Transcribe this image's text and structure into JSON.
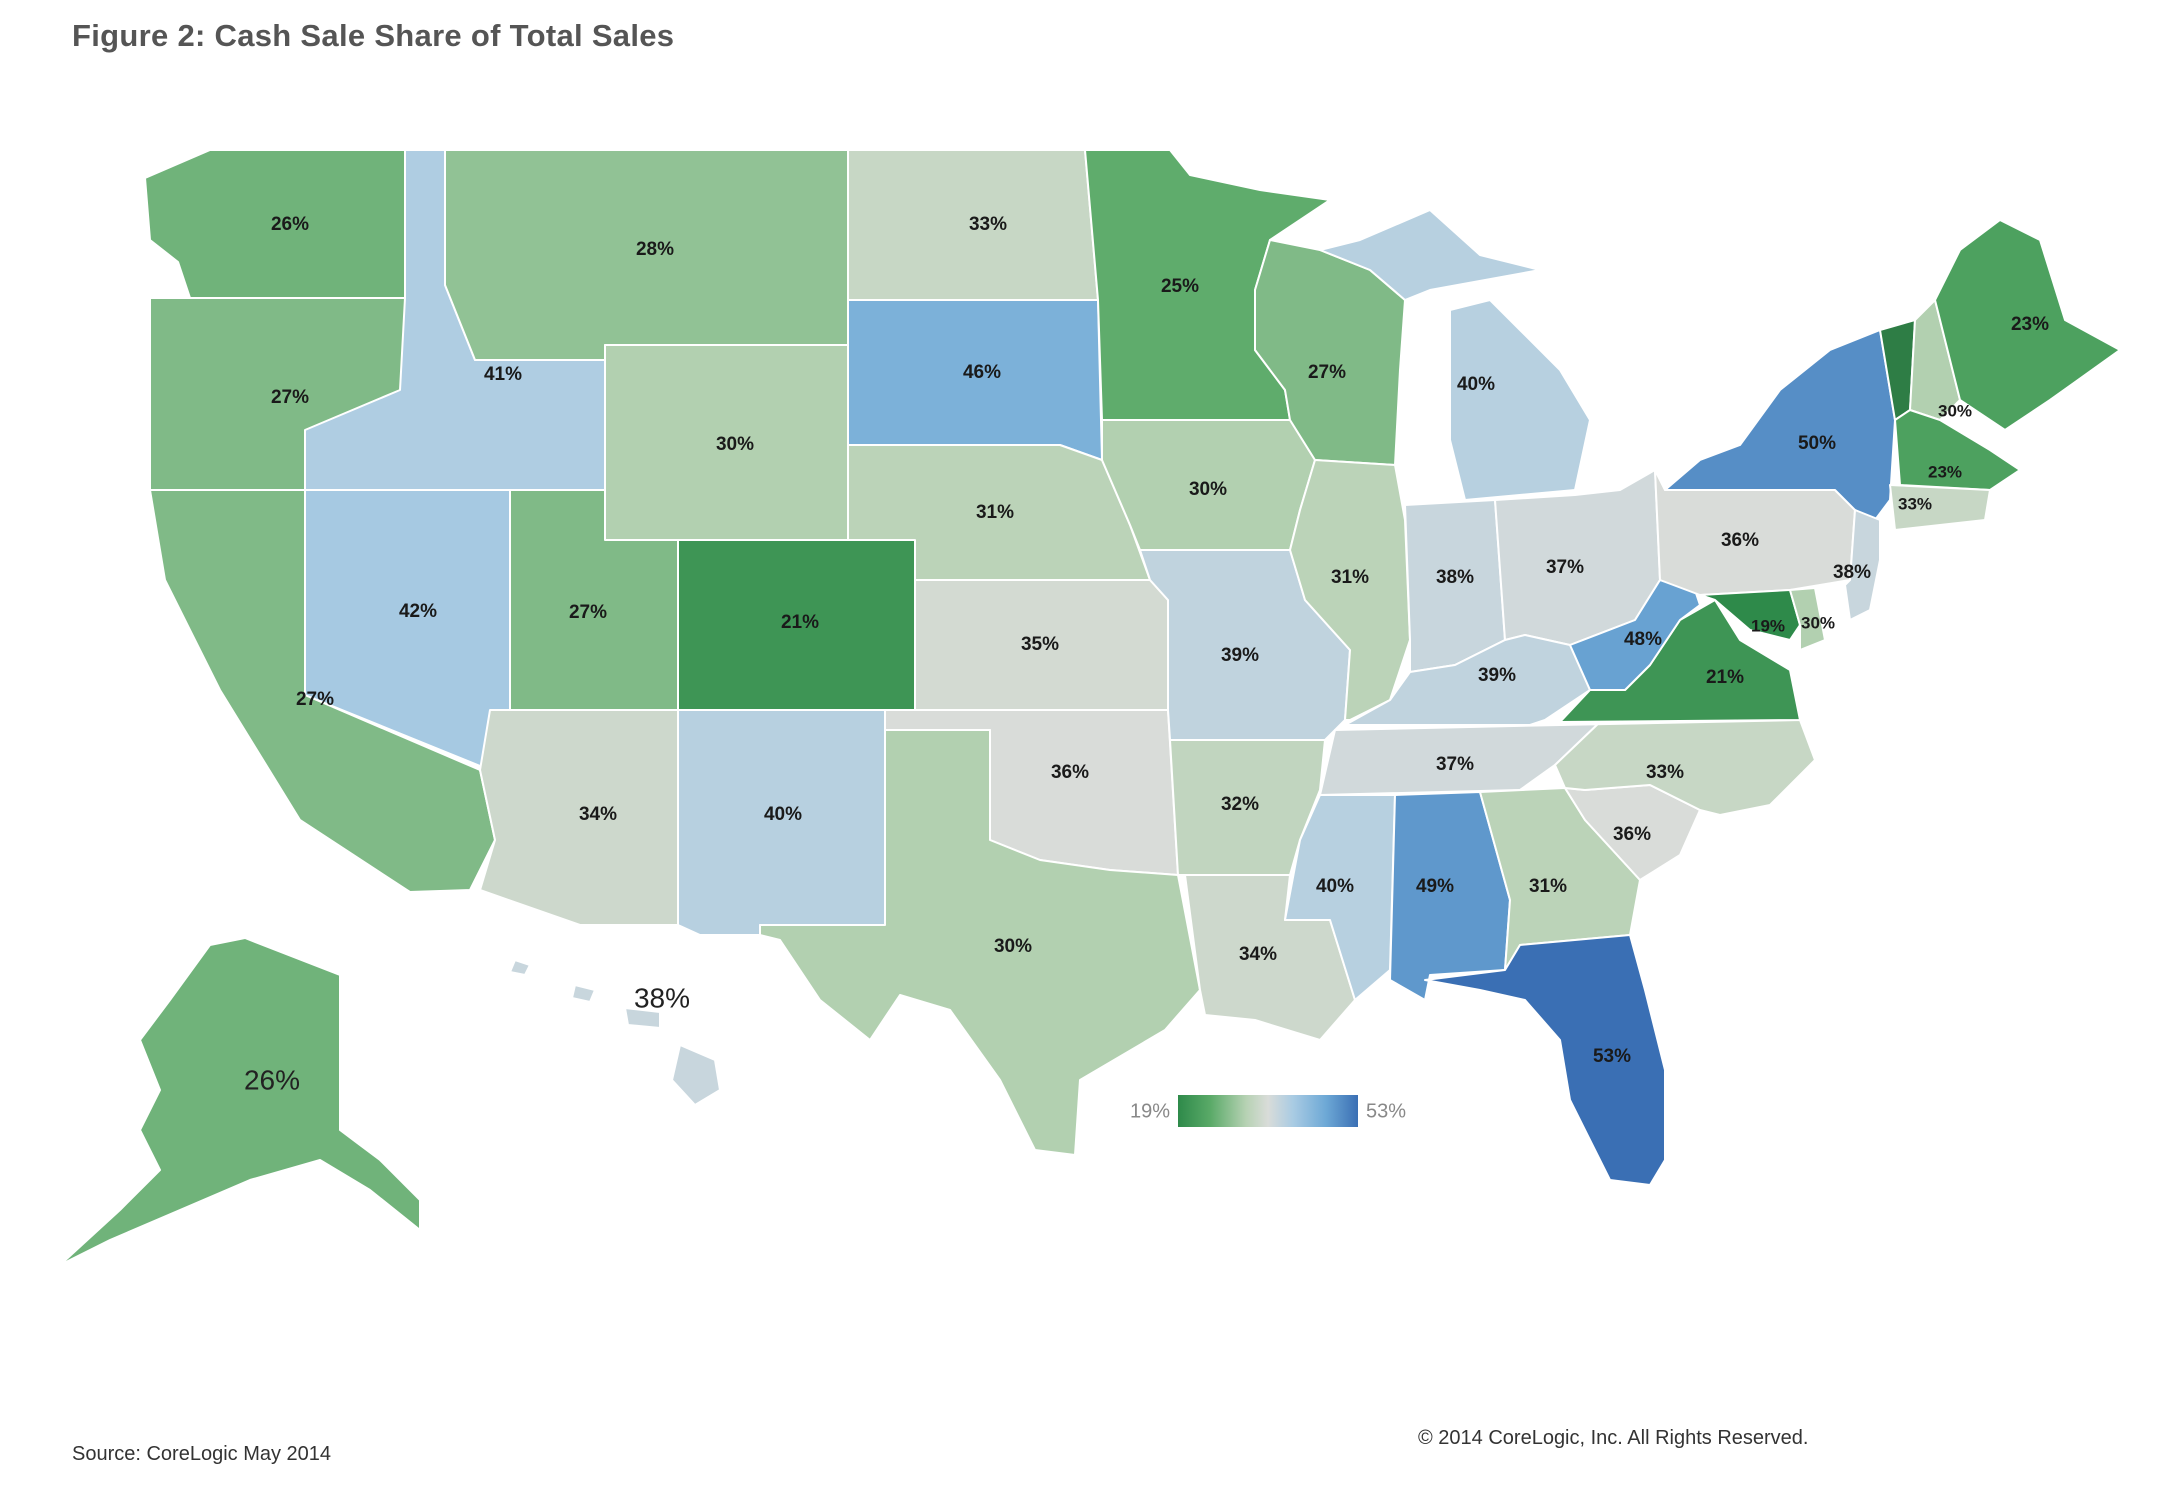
{
  "title": "Figure 2: Cash Sale Share of Total Sales",
  "source": "Source: CoreLogic May 2014",
  "copyright": "© 2014 CoreLogic, Inc. All Rights Reserved.",
  "legend": {
    "min_label": "19%",
    "max_label": "53%",
    "min_value": 19,
    "max_value": 53,
    "colors": [
      "#2e8a4a",
      "#5aaa68",
      "#b7d2b4",
      "#d9dcd9",
      "#a9cbe3",
      "#6ea9d6",
      "#3a6fb4"
    ]
  },
  "states": {
    "WA": "26%",
    "OR": "27%",
    "CA": "27%",
    "ID": "41%",
    "NV": "42%",
    "MT": "28%",
    "WY": "30%",
    "UT": "27%",
    "AZ": "34%",
    "CO": "21%",
    "NM": "40%",
    "ND": "33%",
    "SD": "46%",
    "NE": "31%",
    "KS": "35%",
    "OK": "36%",
    "TX": "30%",
    "MN": "25%",
    "IA": "30%",
    "MO": "39%",
    "AR": "32%",
    "LA": "34%",
    "WI": "27%",
    "IL": "31%",
    "MI": "40%",
    "IN": "38%",
    "OH": "37%",
    "KY": "39%",
    "TN": "37%",
    "MS": "40%",
    "AL": "49%",
    "GA": "31%",
    "FL": "53%",
    "SC": "36%",
    "NC": "33%",
    "VA": "21%",
    "WV": "48%",
    "PA": "36%",
    "NY": "50%",
    "NJ": "38%",
    "MD": "19%",
    "DE": "30%",
    "ME": "23%",
    "NH": "30%",
    "VT": "",
    "MA": "23%",
    "CT": "33%",
    "AK": "26%",
    "HI": "38%"
  }
}
